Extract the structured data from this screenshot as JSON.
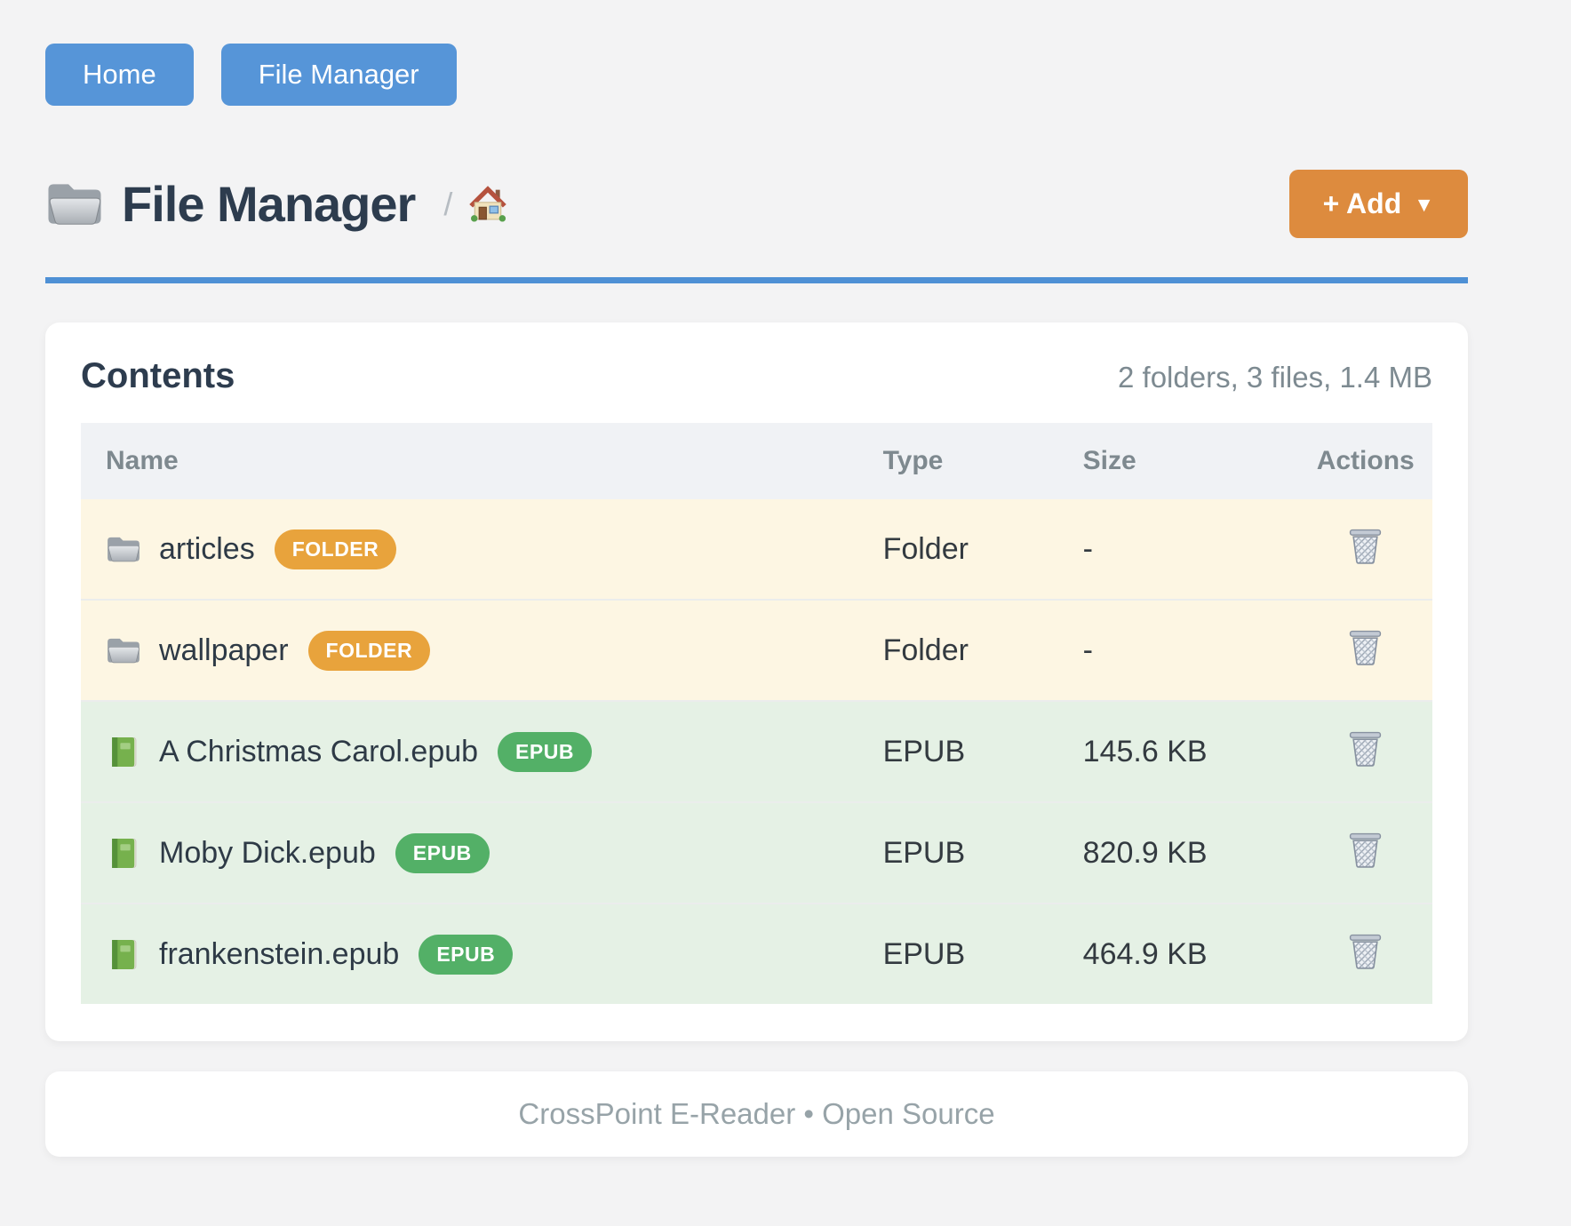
{
  "nav": {
    "buttons": [
      {
        "label": "Home"
      },
      {
        "label": "File Manager"
      }
    ]
  },
  "header": {
    "title": "File Manager",
    "breadcrumb_separator": "/",
    "add_button": {
      "label": "+ Add",
      "caret": "▼"
    }
  },
  "contents": {
    "heading": "Contents",
    "summary": "2 folders, 3 files, 1.4 MB"
  },
  "table": {
    "columns": [
      "Name",
      "Type",
      "Size",
      "Actions"
    ],
    "rows": [
      {
        "name": "articles",
        "kind": "folder",
        "badge": "FOLDER",
        "type": "Folder",
        "size": "-",
        "icon": "folder-icon"
      },
      {
        "name": "wallpaper",
        "kind": "folder",
        "badge": "FOLDER",
        "type": "Folder",
        "size": "-",
        "icon": "folder-icon"
      },
      {
        "name": "A Christmas Carol.epub",
        "kind": "epub",
        "badge": "EPUB",
        "type": "EPUB",
        "size": "145.6 KB",
        "icon": "book-icon"
      },
      {
        "name": "Moby Dick.epub",
        "kind": "epub",
        "badge": "EPUB",
        "type": "EPUB",
        "size": "820.9 KB",
        "icon": "book-icon"
      },
      {
        "name": "frankenstein.epub",
        "kind": "epub",
        "badge": "EPUB",
        "type": "EPUB",
        "size": "464.9 KB",
        "icon": "book-icon"
      }
    ]
  },
  "footer": {
    "text": "CrossPoint E-Reader • Open Source"
  },
  "colors": {
    "accent_blue": "#5695d8",
    "divider_blue": "#4e90d5",
    "accent_orange": "#dd8b3e",
    "badge_orange": "#e8a33c",
    "badge_green": "#53b067",
    "row_folder_bg": "#fdf6e3",
    "row_epub_bg": "#e5f1e5",
    "table_header_bg": "#f0f2f5",
    "page_bg": "#f3f3f4"
  }
}
